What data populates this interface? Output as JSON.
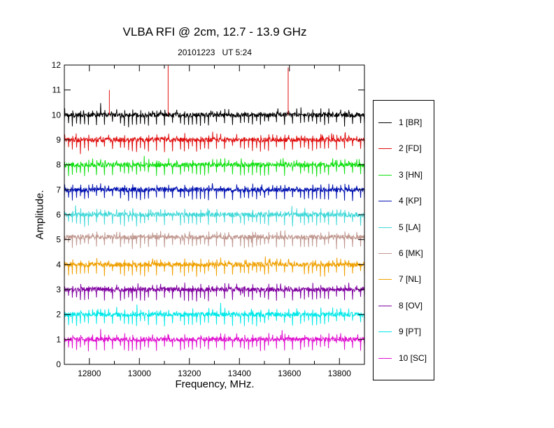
{
  "chart_data": {
    "type": "line",
    "title": "VLBA RFI @ 2cm, 12.7 - 13.9 GHz",
    "subtitle": "20101223   UT 5:24",
    "xlabel": "Frequency, MHz.",
    "ylabel": "Amplitude.",
    "xlim": [
      12700,
      13900
    ],
    "ylim": [
      0,
      12
    ],
    "xticks": [
      12800,
      13000,
      13200,
      13400,
      13600,
      13800
    ],
    "yticks": [
      0,
      1,
      2,
      3,
      4,
      5,
      6,
      7,
      8,
      9,
      10,
      11,
      12
    ],
    "grid": false,
    "legend_position": "right",
    "series": [
      {
        "name": "1 [BR]",
        "color": "#000000",
        "offset": 10.0,
        "spikes": [
          [
            12880,
            11.0
          ],
          [
            13115,
            12.0
          ],
          [
            13595,
            11.9
          ]
        ]
      },
      {
        "name": "2 [FD]",
        "color": "#e01010",
        "offset": 9.0,
        "spikes": []
      },
      {
        "name": "3 [HN]",
        "color": "#10e010",
        "offset": 8.0,
        "spikes": []
      },
      {
        "name": "4 [KP]",
        "color": "#0010b0",
        "offset": 7.0,
        "spikes": []
      },
      {
        "name": "5 [LA]",
        "color": "#40d8d8",
        "offset": 6.0,
        "spikes": []
      },
      {
        "name": "6 [MK]",
        "color": "#c09890",
        "offset": 5.1,
        "spikes": []
      },
      {
        "name": "7 [NL]",
        "color": "#f0a000",
        "offset": 4.0,
        "spikes": []
      },
      {
        "name": "8 [OV]",
        "color": "#8000a0",
        "offset": 3.0,
        "spikes": []
      },
      {
        "name": "9 [PT]",
        "color": "#00e8e8",
        "offset": 2.0,
        "spikes": []
      },
      {
        "name": "10 [SC]",
        "color": "#e010d0",
        "offset": 1.0,
        "spikes": []
      }
    ]
  }
}
